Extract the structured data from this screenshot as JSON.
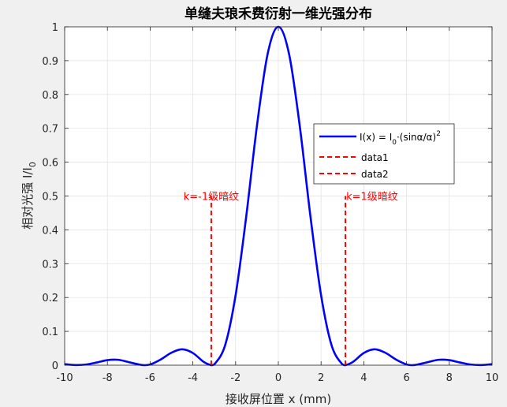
{
  "chart_data": {
    "type": "line",
    "title": "单缝夫琅禾费衍射一维光强分布",
    "xlabel": "接收屏位置 x (mm)",
    "ylabel": "相对光强 I/I",
    "ylabel_sub": "0",
    "xlim": [
      -10,
      10
    ],
    "ylim": [
      0,
      1
    ],
    "xticks": [
      -10,
      -8,
      -6,
      -4,
      -2,
      0,
      2,
      4,
      6,
      8,
      10
    ],
    "yticks": [
      0,
      0.1,
      0.2,
      0.3,
      0.4,
      0.5,
      0.6,
      0.7,
      0.8,
      0.9,
      1
    ],
    "grid": true,
    "legend_position": "upper-right",
    "series": [
      {
        "name": "I(x) = I0·(sinα/α)^2",
        "legend_main": "I(x) = I",
        "legend_sub": "0",
        "legend_mid": "·(sinα/α)",
        "legend_sup": "2",
        "style": "solid",
        "color": "#0000ff",
        "x": [
          -10,
          -9.5,
          -9,
          -8.5,
          -8,
          -7.5,
          -7,
          -6.5,
          -6.25,
          -6,
          -5.5,
          -5,
          -4.5,
          -4,
          -3.5,
          -3.14,
          -3,
          -2.5,
          -2,
          -1.5,
          -1,
          -0.5,
          0,
          0.5,
          1,
          1.5,
          2,
          2.5,
          3,
          3.14,
          3.5,
          4,
          4.5,
          5,
          5.5,
          6,
          6.25,
          6.5,
          7,
          7.5,
          8,
          8.5,
          9,
          9.5,
          10
        ],
        "y": [
          0.003,
          0.0005,
          0.002,
          0.008,
          0.015,
          0.016,
          0.009,
          0.0017,
          0.0,
          0.002,
          0.017,
          0.037,
          0.047,
          0.036,
          0.01,
          0.0,
          0.002,
          0.057,
          0.207,
          0.441,
          0.708,
          0.92,
          1.0,
          0.92,
          0.708,
          0.441,
          0.207,
          0.057,
          0.002,
          0.0,
          0.01,
          0.036,
          0.047,
          0.037,
          0.017,
          0.002,
          0.0,
          0.0017,
          0.009,
          0.016,
          0.015,
          0.008,
          0.002,
          0.0005,
          0.003
        ]
      },
      {
        "name": "data1",
        "style": "dashed",
        "color": "#ff0000",
        "x": [
          -3.14,
          -3.14
        ],
        "y": [
          0,
          0.5
        ]
      },
      {
        "name": "data2",
        "style": "dashed",
        "color": "#ff0000",
        "x": [
          3.14,
          3.14
        ],
        "y": [
          0,
          0.5
        ]
      }
    ],
    "annotations": [
      {
        "text": "k=-1级暗纹",
        "x": -3.14,
        "y": 0.5,
        "anchor": "middle",
        "color": "#ff0000"
      },
      {
        "text": "k=1级暗纹",
        "x": 3.14,
        "y": 0.5,
        "anchor": "start",
        "color": "#ff0000"
      }
    ]
  }
}
